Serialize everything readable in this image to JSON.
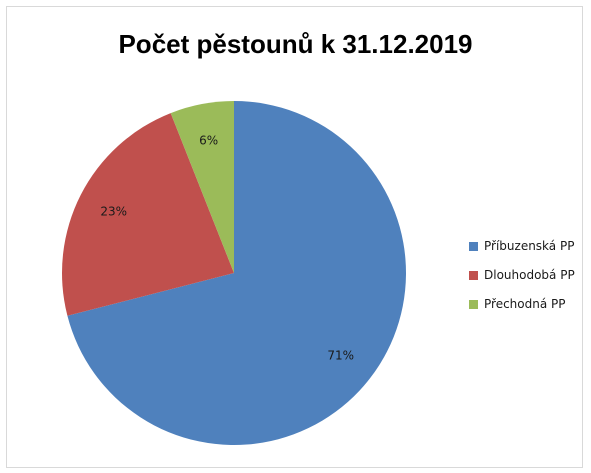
{
  "chart_data": {
    "type": "pie",
    "title": "Počet pěstounů k 31.12.2019",
    "categories": [
      "Příbuzenská PP",
      "Dlouhodobá PP",
      "Přechodná PP"
    ],
    "values": [
      71,
      23,
      6
    ],
    "labels": [
      "71%",
      "23%",
      "6%"
    ],
    "colors": [
      "#4f81bd",
      "#c0504d",
      "#9bbb59"
    ],
    "legend_position": "right"
  }
}
